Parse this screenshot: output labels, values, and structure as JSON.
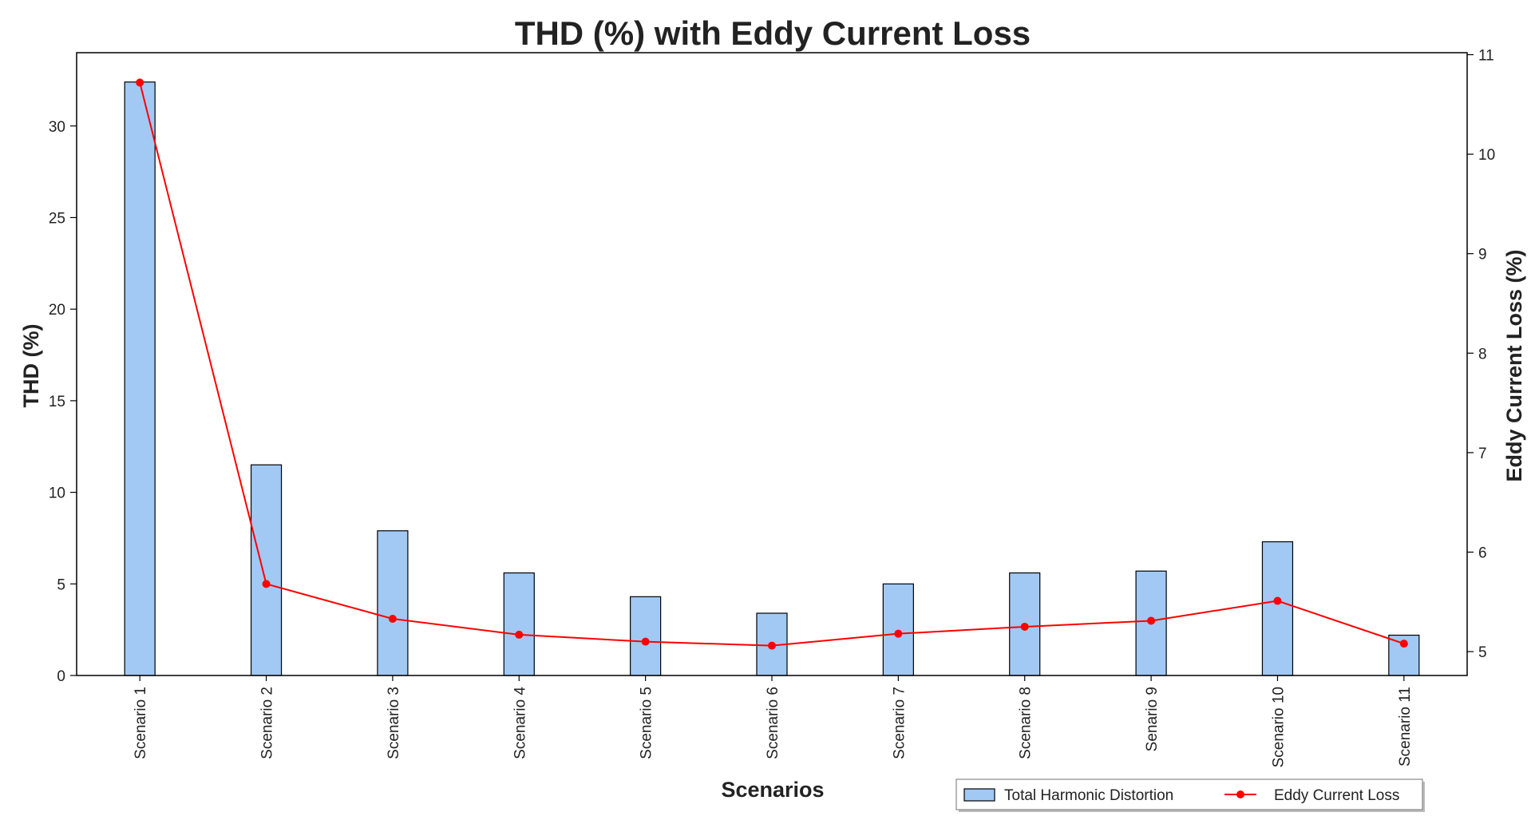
{
  "chart_data": {
    "type": "bar",
    "title": "THD (%) with Eddy Current Loss",
    "xlabel": "Scenarios",
    "ylabel": "THD (%)",
    "y2label": "Eddy Current Loss (%)",
    "categories": [
      "Scenario 1",
      "Scenario 2",
      "Scenario 3",
      "Scenario 4",
      "Scenario 5",
      "Scenario 6",
      "Scenario 7",
      "Scenario 8",
      "Senario 9",
      "Scenario 10",
      "Scenario 11"
    ],
    "series": [
      {
        "name": "Total Harmonic Distortion",
        "type": "bar",
        "axis": "left",
        "color": "#a1c9f4",
        "values": [
          32.4,
          11.5,
          7.9,
          5.6,
          4.3,
          3.4,
          5.0,
          5.6,
          5.7,
          7.3,
          2.2
        ]
      },
      {
        "name": "Eddy Current Loss",
        "type": "line",
        "axis": "right",
        "color": "#ff0000",
        "values": [
          10.72,
          5.68,
          5.33,
          5.17,
          5.1,
          5.06,
          5.18,
          5.25,
          5.31,
          5.51,
          5.08
        ]
      }
    ],
    "ylim": [
      0,
      34
    ],
    "y2lim": [
      4.76,
      11.02
    ],
    "yticks": [
      0,
      5,
      10,
      15,
      20,
      25,
      30
    ],
    "y2ticks": [
      5,
      6,
      7,
      8,
      9,
      10,
      11
    ],
    "grid": false,
    "legend_position": "bottom-right"
  }
}
